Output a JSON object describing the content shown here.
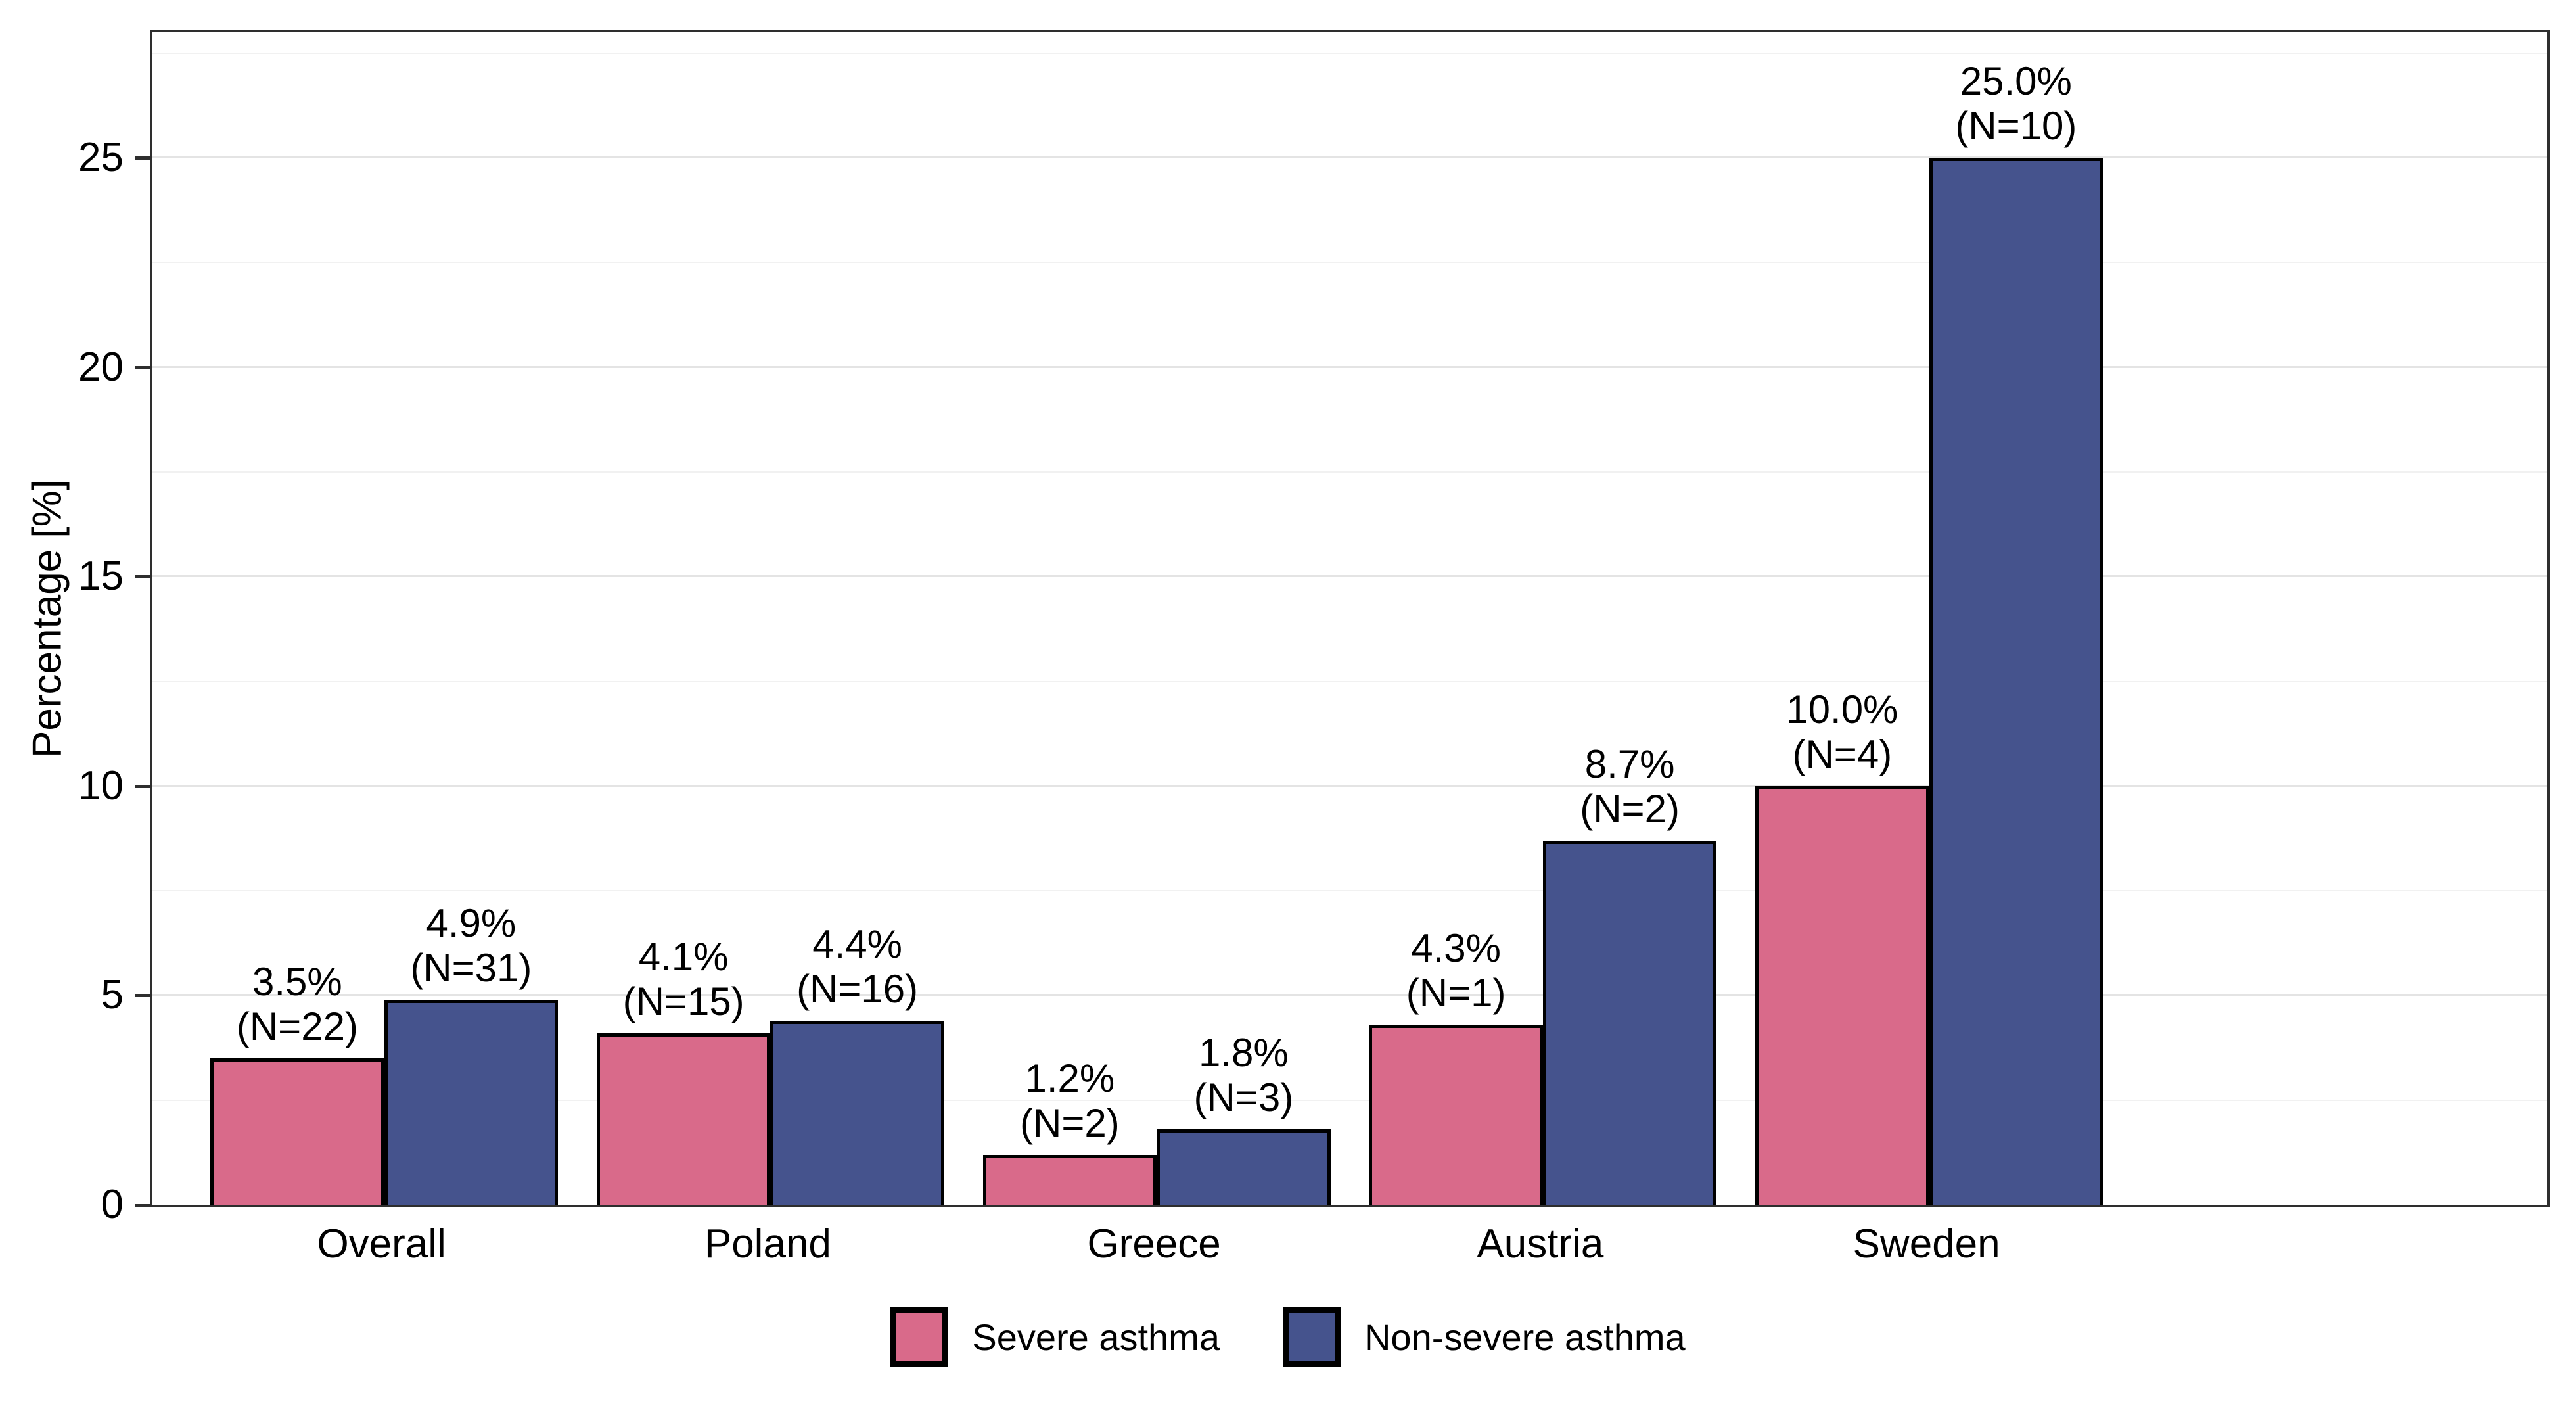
{
  "chart_data": {
    "type": "bar",
    "title": "",
    "ylabel": "Percentage [%]",
    "xlabel": "",
    "ylim": [
      0,
      28
    ],
    "yticks": [
      {
        "value": 0,
        "label": "0"
      },
      {
        "value": 5,
        "label": "5"
      },
      {
        "value": 10,
        "label": "10"
      },
      {
        "value": 15,
        "label": "15"
      },
      {
        "value": 20,
        "label": "20"
      },
      {
        "value": 25,
        "label": "25"
      }
    ],
    "major_gridlines": [
      5,
      10,
      15,
      20,
      25
    ],
    "minor_gridlines": [
      2.5,
      7.5,
      12.5,
      17.5,
      22.5,
      27.5
    ],
    "grid": true,
    "legend_position": "bottom",
    "categories": [
      "Overall",
      "Poland",
      "Greece",
      "Austria",
      "Sweden"
    ],
    "series": [
      {
        "name": "Severe asthma",
        "color": "#D96A8A",
        "values": [
          3.5,
          4.1,
          1.2,
          4.3,
          10.0
        ],
        "counts": [
          22,
          15,
          2,
          1,
          4
        ],
        "percent_labels": [
          "3.5%",
          "4.1%",
          "1.2%",
          "4.3%",
          "10.0%"
        ],
        "n_labels": [
          "(N=22)",
          "(N=15)",
          "(N=2)",
          "(N=1)",
          "(N=4)"
        ]
      },
      {
        "name": "Non-severe asthma",
        "color": "#45538D",
        "values": [
          4.9,
          4.4,
          1.8,
          8.7,
          25.0
        ],
        "counts": [
          31,
          16,
          3,
          2,
          10
        ],
        "percent_labels": [
          "4.9%",
          "4.4%",
          "1.8%",
          "8.7%",
          "25.0%"
        ],
        "n_labels": [
          "(N=31)",
          "(N=16)",
          "(N=3)",
          "(N=2)",
          "(N=10)"
        ]
      }
    ]
  },
  "legend": {
    "items": [
      {
        "label": "Severe asthma",
        "color": "#D96A8A"
      },
      {
        "label": "Non-severe asthma",
        "color": "#45538D"
      }
    ]
  },
  "style": {
    "bar_border": "#000000",
    "panel_border": "#2e2e2e",
    "grid_major": "#e4e4e4",
    "grid_minor": "#f1f1f1",
    "background": "#ffffff",
    "text": "#000000"
  }
}
